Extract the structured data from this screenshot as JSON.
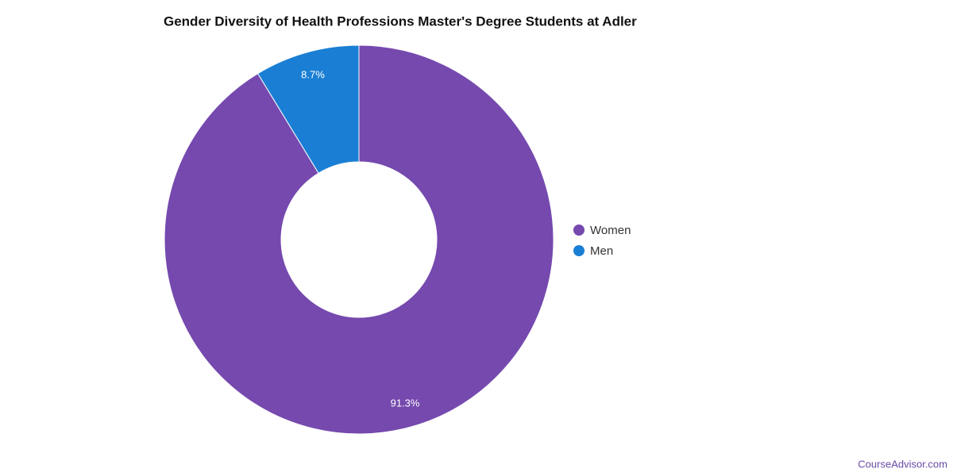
{
  "chart_data": {
    "type": "donut",
    "title": "Gender Diversity of Health Professions Master's Degree Students at Adler",
    "categories": [
      "Women",
      "Men"
    ],
    "values": [
      91.3,
      8.7
    ],
    "value_labels": [
      "91.3%",
      "8.7%"
    ],
    "colors": [
      "#7549ae",
      "#1a7fd4"
    ],
    "legend": "right",
    "source": "CourseAdvisor.com"
  }
}
